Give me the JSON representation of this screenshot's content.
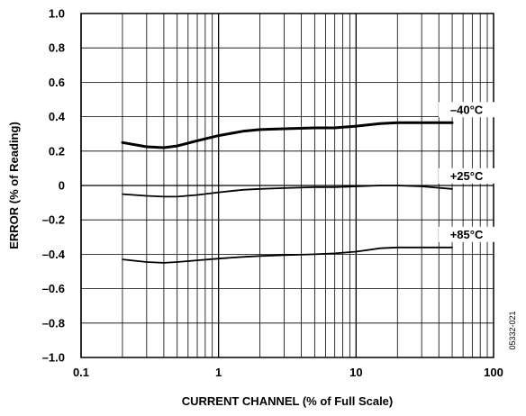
{
  "chart_data": {
    "type": "line",
    "xlabel": "CURRENT CHANNEL (% of Full Scale)",
    "ylabel": "ERROR (% of Reading)",
    "x_scale": "log",
    "xlim": [
      0.1,
      100
    ],
    "ylim": [
      -1.0,
      1.0
    ],
    "x_ticks": [
      "0.1",
      "1",
      "10",
      "100"
    ],
    "y_ticks": [
      "1.0",
      "0.8",
      "0.6",
      "0.4",
      "0.2",
      "0",
      "–0.2",
      "–0.4",
      "–0.6",
      "–0.8",
      "–1.0"
    ],
    "y_tick_values": [
      1.0,
      0.8,
      0.6,
      0.4,
      0.2,
      0,
      -0.2,
      -0.4,
      -0.6,
      -0.8,
      -1.0
    ],
    "grid": true,
    "figure_id": "05332-021",
    "series": [
      {
        "name": "–40°C",
        "line_weight": "heavy",
        "x": [
          0.2,
          0.3,
          0.4,
          0.5,
          0.7,
          1,
          1.5,
          2,
          3,
          5,
          7,
          10,
          15,
          20,
          30,
          50
        ],
        "y": [
          0.25,
          0.225,
          0.22,
          0.23,
          0.26,
          0.29,
          0.315,
          0.325,
          0.33,
          0.335,
          0.335,
          0.345,
          0.36,
          0.365,
          0.365,
          0.365
        ]
      },
      {
        "name": "+25°C",
        "line_weight": "normal",
        "x": [
          0.2,
          0.3,
          0.4,
          0.5,
          0.7,
          1,
          1.5,
          2,
          3,
          5,
          7,
          10,
          15,
          20,
          30,
          50
        ],
        "y": [
          -0.05,
          -0.06,
          -0.065,
          -0.065,
          -0.055,
          -0.04,
          -0.025,
          -0.02,
          -0.015,
          -0.01,
          -0.01,
          -0.005,
          0,
          0,
          -0.005,
          -0.02
        ]
      },
      {
        "name": "+85°C",
        "line_weight": "normal",
        "x": [
          0.2,
          0.3,
          0.4,
          0.5,
          0.7,
          1,
          1.5,
          2,
          3,
          5,
          7,
          10,
          15,
          20,
          30,
          50
        ],
        "y": [
          -0.43,
          -0.445,
          -0.45,
          -0.445,
          -0.435,
          -0.425,
          -0.415,
          -0.41,
          -0.405,
          -0.4,
          -0.395,
          -0.385,
          -0.365,
          -0.36,
          -0.36,
          -0.36
        ]
      }
    ]
  }
}
